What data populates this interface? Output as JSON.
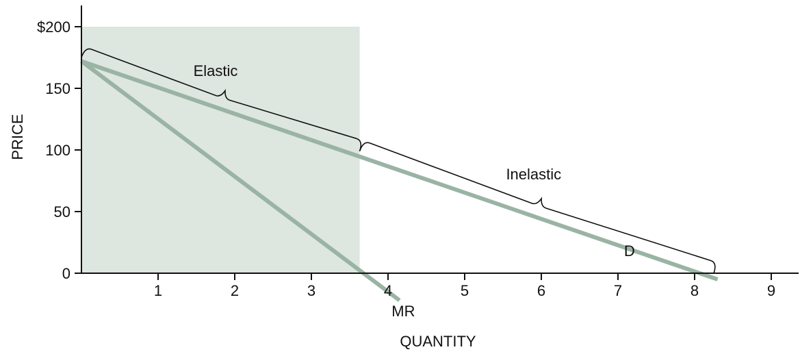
{
  "chart_data": {
    "type": "line",
    "xlabel": "QUANTITY",
    "ylabel": "PRICE",
    "xlim": [
      0,
      9.4
    ],
    "ylim": [
      0,
      220
    ],
    "x_ticks": [
      1,
      2,
      3,
      4,
      5,
      6,
      7,
      8,
      9
    ],
    "x_tick_labels": [
      "1",
      "2",
      "3",
      "4",
      "5",
      "6",
      "7",
      "8",
      "9"
    ],
    "y_ticks": [
      0,
      50,
      100,
      150,
      200
    ],
    "y_tick_labels": [
      "0",
      "50",
      "100",
      "150",
      "$200"
    ],
    "shaded_region": {
      "x": [
        0,
        3.63
      ],
      "y": [
        0,
        200
      ]
    },
    "series": [
      {
        "name": "D",
        "x": [
          0,
          8.3
        ],
        "y": [
          172,
          -5
        ]
      },
      {
        "name": "MR",
        "x": [
          0,
          4.15
        ],
        "y": [
          172,
          -22
        ]
      }
    ],
    "annotations": [
      {
        "text": "Elastic",
        "x": 1.75,
        "y": 160
      },
      {
        "text": "Inelastic",
        "x": 5.9,
        "y": 76
      }
    ],
    "braces": [
      {
        "label": "Elastic",
        "from": [
          0,
          175
        ],
        "to": [
          3.63,
          99
        ]
      },
      {
        "label": "Inelastic",
        "from": [
          3.63,
          99
        ],
        "to": [
          8.25,
          0
        ]
      }
    ],
    "colors": {
      "line": "#9ab4a4",
      "shade": "#dde6df",
      "axis": "#111111"
    }
  }
}
